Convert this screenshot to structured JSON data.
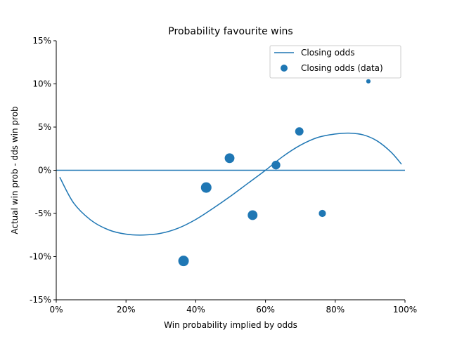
{
  "chart_data": {
    "type": "scatter",
    "title": "Probability favourite wins",
    "xlabel": "Win probability implied by odds",
    "ylabel": "Actual win prob - dds win prob",
    "xlim": [
      0,
      1
    ],
    "ylim": [
      -0.15,
      0.15
    ],
    "xticks": [
      0,
      0.2,
      0.4,
      0.6,
      0.8,
      1.0
    ],
    "xtick_labels": [
      "0%",
      "20%",
      "40%",
      "60%",
      "80%",
      "100%"
    ],
    "yticks": [
      -0.15,
      -0.1,
      -0.05,
      0,
      0.05,
      0.1,
      0.15
    ],
    "ytick_labels": [
      "-15%",
      "-10%",
      "-5%",
      "0%",
      "5%",
      "10%",
      "15%"
    ],
    "grid": false,
    "legend_position": "top-right",
    "color": "#1f77b4",
    "reference_line_y": 0,
    "series": [
      {
        "name": "Closing odds",
        "kind": "line",
        "x": [
          0.01,
          0.05,
          0.1,
          0.15,
          0.2,
          0.25,
          0.3,
          0.35,
          0.4,
          0.45,
          0.5,
          0.55,
          0.6,
          0.65,
          0.7,
          0.75,
          0.8,
          0.84,
          0.88,
          0.92,
          0.96,
          0.99
        ],
        "y": [
          -0.008,
          -0.038,
          -0.058,
          -0.069,
          -0.074,
          -0.075,
          -0.073,
          -0.067,
          -0.057,
          -0.044,
          -0.03,
          -0.015,
          0.0,
          0.016,
          0.029,
          0.038,
          0.042,
          0.043,
          0.041,
          0.034,
          0.021,
          0.007
        ]
      },
      {
        "name": "Closing odds (data)",
        "kind": "scatter",
        "x": [
          0.365,
          0.43,
          0.497,
          0.563,
          0.63,
          0.697,
          0.763,
          0.895
        ],
        "y": [
          -0.105,
          -0.02,
          0.014,
          -0.052,
          0.006,
          0.045,
          -0.05,
          0.103
        ],
        "size": [
          3.5,
          3.5,
          3.0,
          3.0,
          2.4,
          2.2,
          1.6,
          0.6
        ]
      }
    ]
  }
}
